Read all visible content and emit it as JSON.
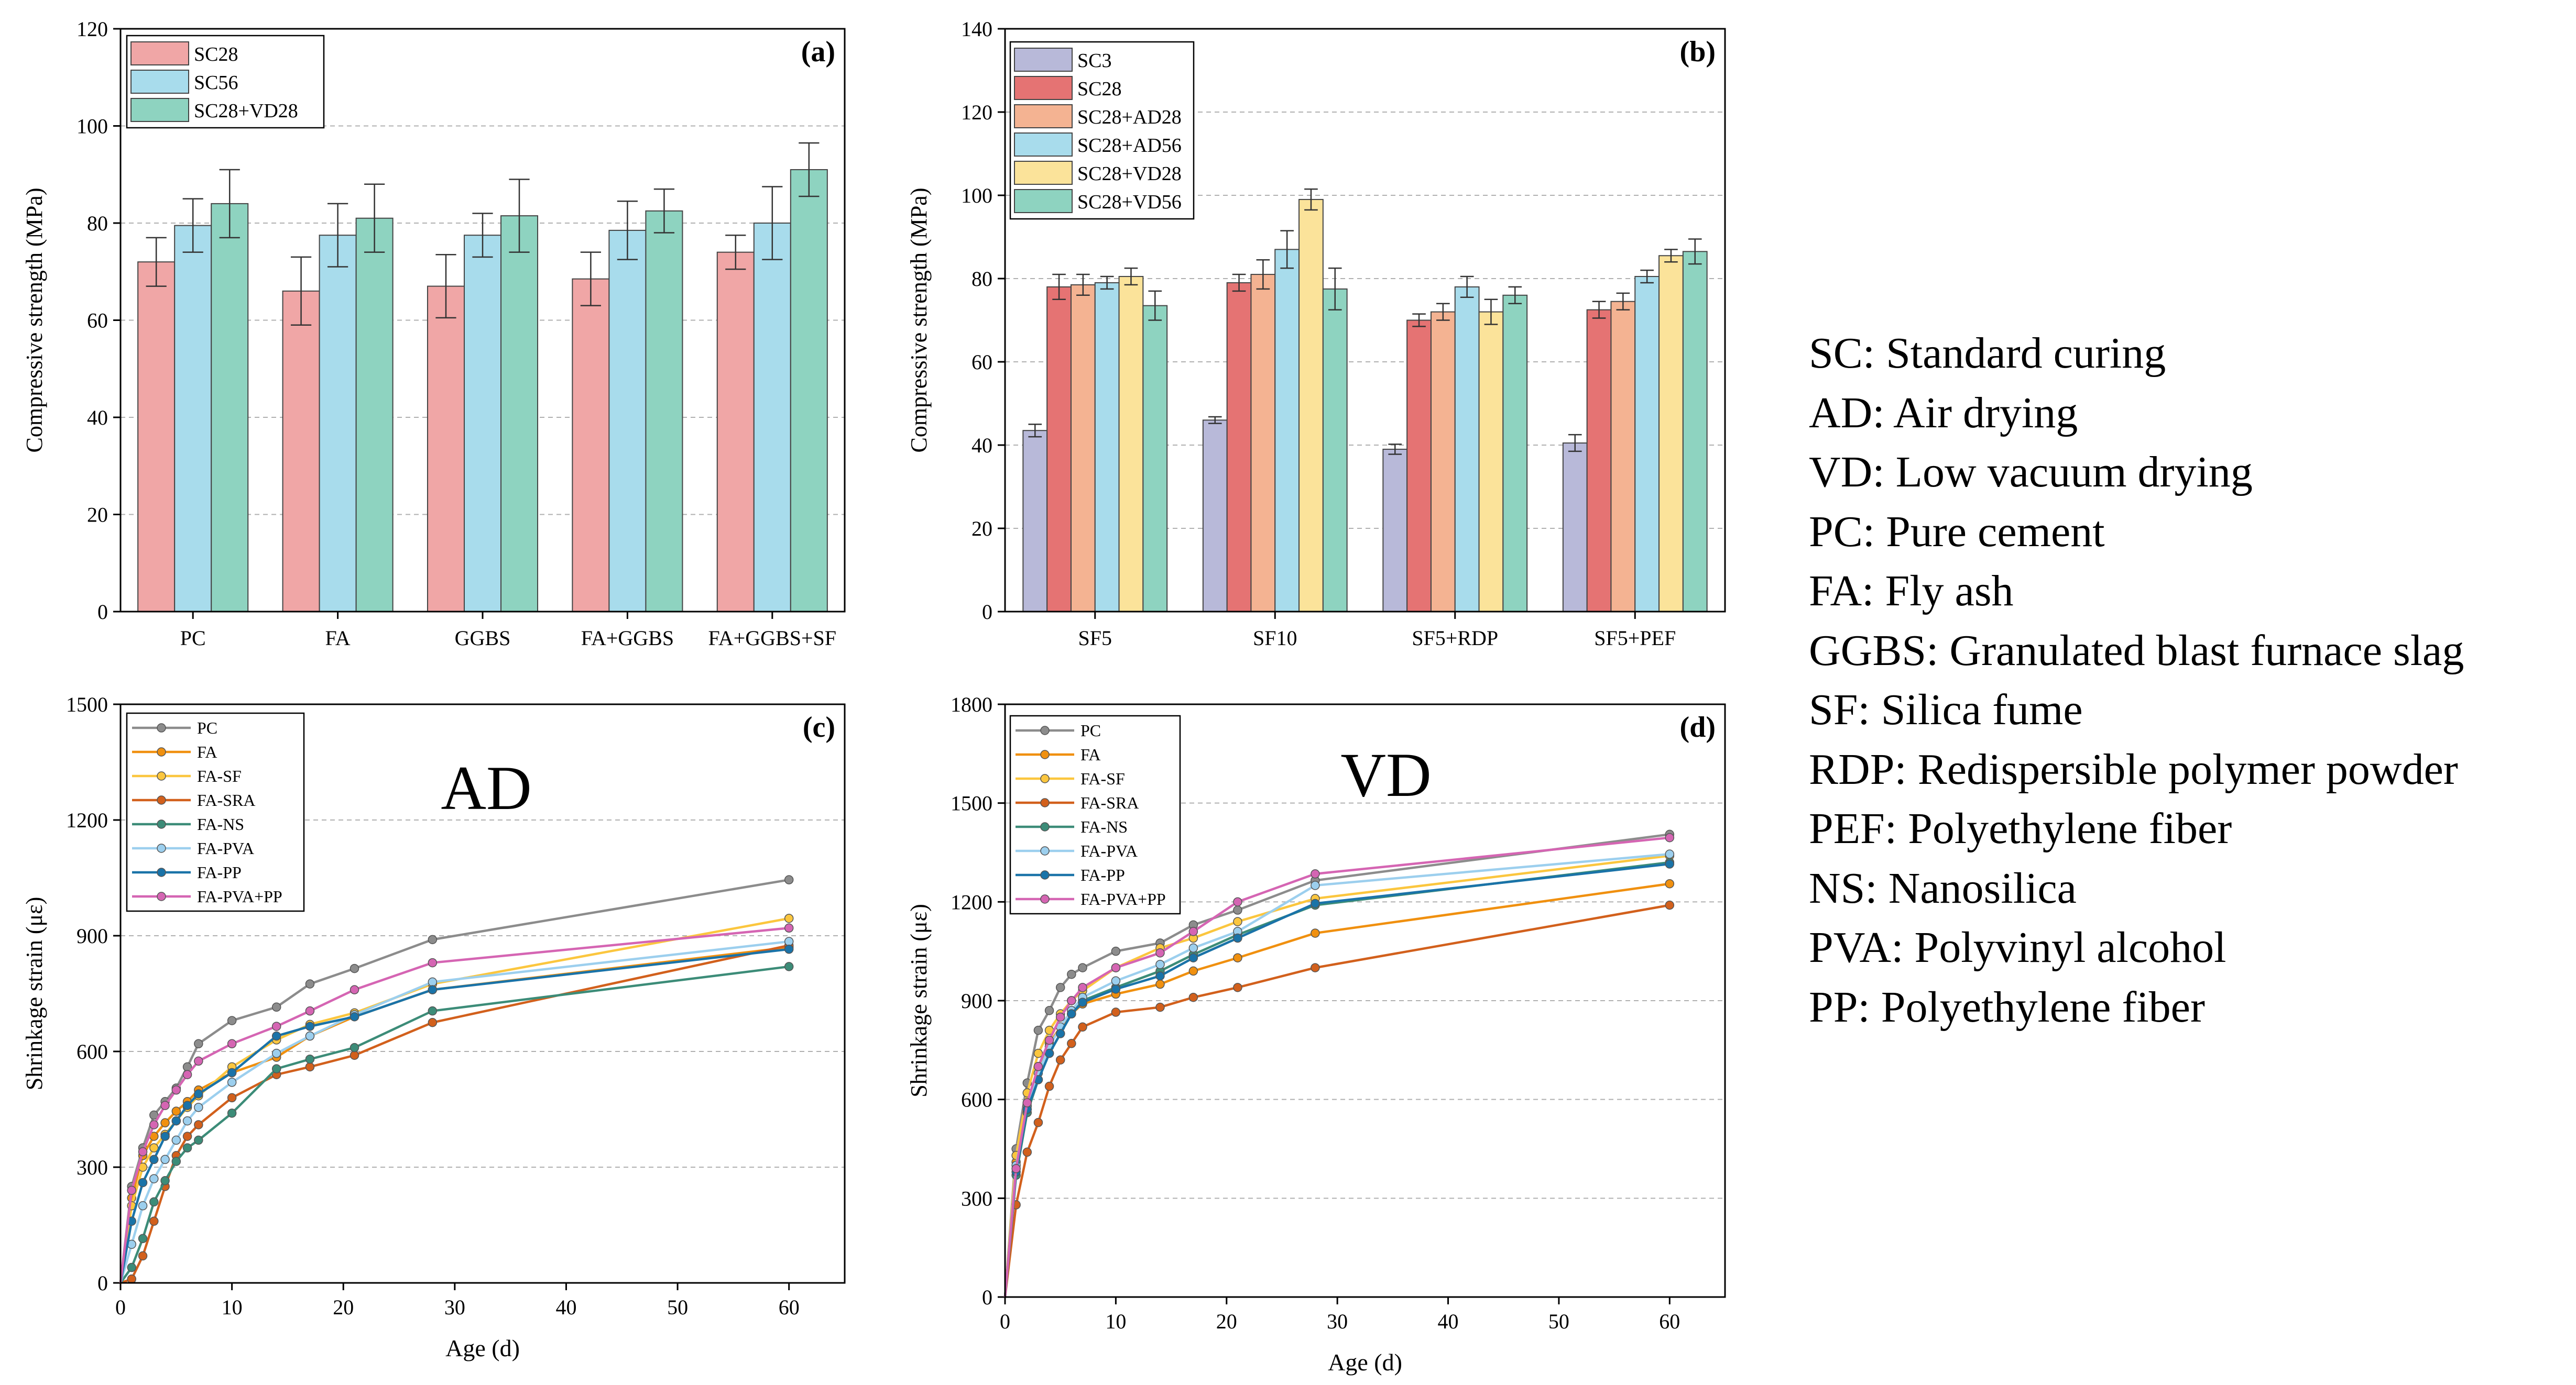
{
  "colors": {
    "pink": "#f0a6a6",
    "red": "#e57373",
    "lightblue": "#a8dcec",
    "teal": "#8ed3c0",
    "lavender": "#b8b9d9",
    "salmon": "#f4b392",
    "yellow": "#fbe39a",
    "grid": "#b0b0b0",
    "PC": "#8c8c8c",
    "FA": "#f0900f",
    "FA-SF": "#fbc63e",
    "FA-SRA": "#d2601c",
    "FA-NS": "#3c8c78",
    "FA-PVA": "#9ccfee",
    "FA-PP": "#1a73a8",
    "FA-PVA+PP": "#d565b3"
  },
  "chart_data": [
    {
      "type": "bar",
      "panel": "(a)",
      "xlabel": "",
      "ylabel": "Compressive strength (MPa)",
      "ylim": [
        0,
        120
      ],
      "yticks": [
        0,
        20,
        40,
        60,
        80,
        100,
        120
      ],
      "categories": [
        "PC",
        "FA",
        "GGBS",
        "FA+GGBS",
        "FA+GGBS+SF"
      ],
      "legend_position": "top-left",
      "series": [
        {
          "name": "SC28",
          "color": "#f0a6a6",
          "values": [
            72,
            66,
            67,
            68.5,
            74
          ],
          "errors": [
            5,
            7,
            6.5,
            5.5,
            3.5
          ]
        },
        {
          "name": "SC56",
          "color": "#a8dcec",
          "values": [
            79.5,
            77.5,
            77.5,
            78.5,
            80
          ],
          "errors": [
            5.5,
            6.5,
            4.5,
            6,
            7.5
          ]
        },
        {
          "name": "SC28+VD28",
          "color": "#8ed3c0",
          "values": [
            84,
            81,
            81.5,
            82.5,
            91
          ],
          "errors": [
            7,
            7,
            7.5,
            4.5,
            5.5
          ]
        }
      ]
    },
    {
      "type": "bar",
      "panel": "(b)",
      "xlabel": "",
      "ylabel": "Compressive strength (MPa)",
      "ylim": [
        0,
        140
      ],
      "yticks": [
        0,
        20,
        40,
        60,
        80,
        100,
        120,
        140
      ],
      "categories": [
        "SF5",
        "SF10",
        "SF5+RDP",
        "SF5+PEF"
      ],
      "legend_position": "top-left",
      "series": [
        {
          "name": "SC3",
          "color": "#b8b9d9",
          "values": [
            43.5,
            46,
            39,
            40.5
          ],
          "errors": [
            1.5,
            0.8,
            1.2,
            2
          ]
        },
        {
          "name": "SC28",
          "color": "#e57373",
          "values": [
            78,
            79,
            70,
            72.5
          ],
          "errors": [
            3,
            2,
            1.5,
            2
          ]
        },
        {
          "name": "SC28+AD28",
          "color": "#f4b392",
          "values": [
            78.5,
            81,
            72,
            74.5
          ],
          "errors": [
            2.5,
            3.5,
            2,
            2
          ]
        },
        {
          "name": "SC28+AD56",
          "color": "#a8dcec",
          "values": [
            79,
            87,
            78,
            80.5
          ],
          "errors": [
            1.5,
            4.5,
            2.5,
            1.5
          ]
        },
        {
          "name": "SC28+VD28",
          "color": "#fbe39a",
          "values": [
            80.5,
            99,
            72,
            85.5
          ],
          "errors": [
            2,
            2.5,
            3,
            1.5
          ]
        },
        {
          "name": "SC28+VD56",
          "color": "#8ed3c0",
          "values": [
            73.5,
            77.5,
            76,
            86.5
          ],
          "errors": [
            3.5,
            5,
            2,
            3
          ]
        }
      ]
    },
    {
      "type": "line",
      "panel": "(c)",
      "annotation": "AD",
      "xlabel": "Age (d)",
      "ylabel": "Shrinkage strain (με)",
      "xlim": [
        0,
        65
      ],
      "xticks": [
        0,
        10,
        20,
        30,
        40,
        50,
        60
      ],
      "ylim": [
        0,
        1500
      ],
      "yticks": [
        0,
        300,
        600,
        900,
        1200,
        1500
      ],
      "legend_position": "top-left",
      "series": [
        {
          "name": "PC",
          "x": [
            0,
            1,
            2,
            3,
            4,
            5,
            6,
            7,
            10,
            14,
            17,
            21,
            28,
            60
          ],
          "y": [
            0,
            250,
            350,
            435,
            470,
            505,
            560,
            620,
            680,
            715,
            775,
            815,
            890,
            1045
          ]
        },
        {
          "name": "FA",
          "x": [
            0,
            1,
            2,
            3,
            4,
            5,
            6,
            7,
            10,
            14,
            17,
            21,
            28,
            60
          ],
          "y": [
            0,
            220,
            330,
            380,
            415,
            445,
            470,
            500,
            545,
            585,
            640,
            690,
            760,
            870
          ]
        },
        {
          "name": "FA-SF",
          "x": [
            0,
            1,
            2,
            3,
            4,
            5,
            6,
            7,
            10,
            14,
            17,
            21,
            28,
            60
          ],
          "y": [
            0,
            200,
            300,
            350,
            385,
            420,
            455,
            485,
            560,
            630,
            670,
            700,
            775,
            945
          ]
        },
        {
          "name": "FA-SRA",
          "x": [
            0,
            1,
            2,
            3,
            4,
            5,
            6,
            7,
            10,
            14,
            17,
            21,
            28,
            60
          ],
          "y": [
            0,
            10,
            70,
            160,
            250,
            330,
            380,
            410,
            480,
            540,
            560,
            590,
            675,
            875
          ]
        },
        {
          "name": "FA-NS",
          "x": [
            0,
            1,
            2,
            3,
            4,
            5,
            6,
            7,
            10,
            14,
            17,
            21,
            28,
            60
          ],
          "y": [
            0,
            40,
            115,
            210,
            265,
            315,
            350,
            370,
            440,
            555,
            580,
            610,
            705,
            820
          ]
        },
        {
          "name": "FA-PVA",
          "x": [
            0,
            1,
            2,
            3,
            4,
            5,
            6,
            7,
            10,
            14,
            17,
            21,
            28,
            60
          ],
          "y": [
            0,
            100,
            200,
            270,
            320,
            370,
            420,
            455,
            520,
            595,
            640,
            695,
            780,
            885
          ]
        },
        {
          "name": "FA-PP",
          "x": [
            0,
            1,
            2,
            3,
            4,
            5,
            6,
            7,
            10,
            14,
            17,
            21,
            28,
            60
          ],
          "y": [
            0,
            160,
            260,
            320,
            380,
            420,
            460,
            490,
            545,
            640,
            665,
            690,
            760,
            865
          ]
        },
        {
          "name": "FA-PVA+PP",
          "x": [
            0,
            1,
            2,
            3,
            4,
            5,
            6,
            7,
            10,
            14,
            17,
            21,
            28,
            60
          ],
          "y": [
            0,
            240,
            340,
            410,
            460,
            500,
            540,
            575,
            620,
            665,
            705,
            760,
            830,
            920
          ]
        }
      ]
    },
    {
      "type": "line",
      "panel": "(d)",
      "annotation": "VD",
      "xlabel": "Age (d)",
      "ylabel": "Shrinkage strain (με)",
      "xlim": [
        0,
        65
      ],
      "xticks": [
        0,
        10,
        20,
        30,
        40,
        50,
        60
      ],
      "ylim": [
        0,
        1800
      ],
      "yticks": [
        0,
        300,
        600,
        900,
        1200,
        1500,
        1800
      ],
      "legend_position": "top-left",
      "series": [
        {
          "name": "PC",
          "x": [
            0,
            1,
            2,
            3,
            4,
            5,
            6,
            7,
            10,
            14,
            17,
            21,
            28,
            60
          ],
          "y": [
            0,
            450,
            650,
            810,
            870,
            940,
            980,
            1000,
            1050,
            1075,
            1130,
            1175,
            1265,
            1405
          ]
        },
        {
          "name": "FA",
          "x": [
            0,
            1,
            2,
            3,
            4,
            5,
            6,
            7,
            10,
            14,
            17,
            21,
            28,
            60
          ],
          "y": [
            0,
            410,
            580,
            700,
            770,
            820,
            860,
            890,
            920,
            950,
            990,
            1030,
            1105,
            1255
          ]
        },
        {
          "name": "FA-SF",
          "x": [
            0,
            1,
            2,
            3,
            4,
            5,
            6,
            7,
            10,
            14,
            17,
            21,
            28,
            60
          ],
          "y": [
            0,
            430,
            620,
            740,
            810,
            860,
            900,
            930,
            1000,
            1060,
            1090,
            1140,
            1210,
            1340
          ]
        },
        {
          "name": "FA-SRA",
          "x": [
            0,
            1,
            2,
            3,
            4,
            5,
            6,
            7,
            10,
            14,
            17,
            21,
            28,
            60
          ],
          "y": [
            0,
            280,
            440,
            530,
            640,
            720,
            770,
            820,
            865,
            880,
            910,
            940,
            1000,
            1190
          ]
        },
        {
          "name": "FA-NS",
          "x": [
            0,
            1,
            2,
            3,
            4,
            5,
            6,
            7,
            10,
            14,
            17,
            21,
            28,
            60
          ],
          "y": [
            0,
            370,
            560,
            660,
            740,
            800,
            860,
            900,
            940,
            990,
            1040,
            1100,
            1190,
            1320
          ]
        },
        {
          "name": "FA-PVA",
          "x": [
            0,
            1,
            2,
            3,
            4,
            5,
            6,
            7,
            10,
            14,
            17,
            21,
            28,
            60
          ],
          "y": [
            0,
            400,
            580,
            680,
            760,
            820,
            870,
            910,
            960,
            1010,
            1060,
            1110,
            1250,
            1345
          ]
        },
        {
          "name": "FA-PP",
          "x": [
            0,
            1,
            2,
            3,
            4,
            5,
            6,
            7,
            10,
            14,
            17,
            21,
            28,
            60
          ],
          "y": [
            0,
            380,
            570,
            660,
            740,
            800,
            860,
            895,
            935,
            975,
            1030,
            1090,
            1195,
            1315
          ]
        },
        {
          "name": "FA-PVA+PP",
          "x": [
            0,
            1,
            2,
            3,
            4,
            5,
            6,
            7,
            10,
            14,
            17,
            21,
            28,
            60
          ],
          "y": [
            0,
            390,
            590,
            700,
            780,
            850,
            900,
            940,
            1000,
            1045,
            1110,
            1200,
            1285,
            1395
          ]
        }
      ]
    }
  ],
  "glossary": [
    "SC: Standard curing",
    "AD: Air drying",
    "VD: Low vacuum drying",
    "PC: Pure cement",
    "FA: Fly ash",
    "GGBS: Granulated blast furnace slag",
    "SF: Silica fume",
    "RDP: Redispersible polymer powder",
    "PEF: Polyethylene fiber",
    "NS: Nanosilica",
    "PVA: Polyvinyl alcohol",
    "PP: Polyethylene fiber"
  ]
}
